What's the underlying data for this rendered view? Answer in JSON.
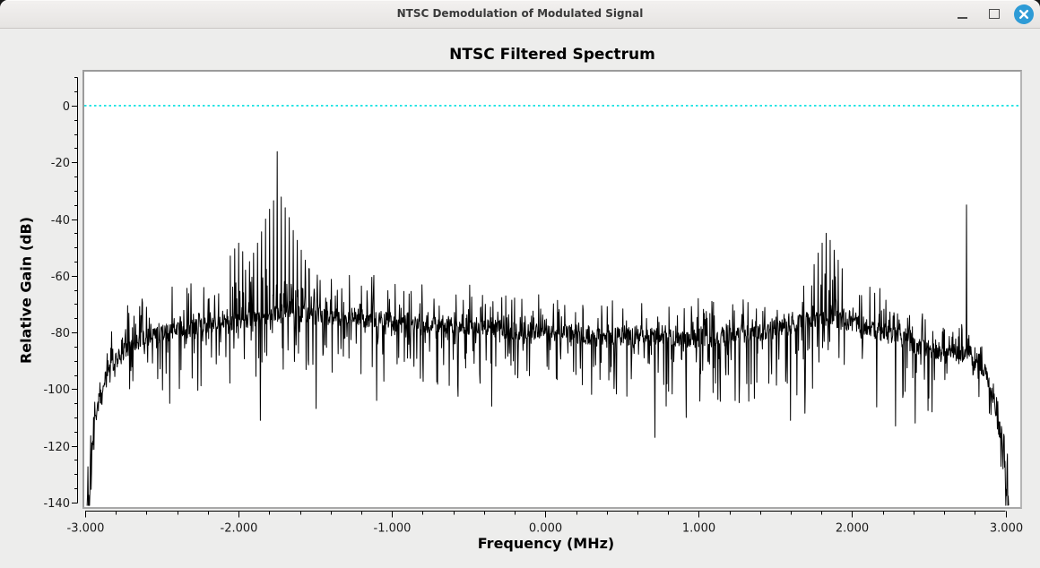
{
  "window": {
    "title": "NTSC Demodulation of Modulated Signal",
    "controls": [
      {
        "name": "minimize",
        "icon": "window-minimize-icon"
      },
      {
        "name": "maximize",
        "icon": "window-maximize-icon"
      },
      {
        "name": "close",
        "icon": "window-close-icon"
      }
    ]
  },
  "colors": {
    "close_button": "#2e9bd6",
    "titlebar_text": "#3a3a3a",
    "client_background": "#ededec",
    "plot_background": "#ffffff",
    "ref_line": "#00e0e0",
    "trace": "#000000"
  },
  "chart": {
    "title": "NTSC Filtered Spectrum",
    "xlabel": "Frequency (MHz)",
    "ylabel": "Relative Gain (dB)"
  },
  "chart_data": {
    "type": "line",
    "title": "NTSC Filtered Spectrum",
    "xlabel": "Frequency (MHz)",
    "ylabel": "Relative Gain (dB)",
    "x_units": "MHz",
    "y_units": "dB",
    "xlim": [
      -3.006,
      3.096
    ],
    "ylim": [
      -141.6,
      12.0
    ],
    "x_major_ticks": [
      -3,
      -2,
      -1,
      0,
      1,
      2,
      3
    ],
    "x_tick_labels": [
      "-3.000",
      "-2.000",
      "-1.000",
      "0.000",
      "1.000",
      "2.000",
      "3.000"
    ],
    "x_minor_step": 0.2,
    "y_major_ticks": [
      0,
      -20,
      -40,
      -60,
      -80,
      -100,
      -120,
      -140
    ],
    "y_tick_labels": [
      "0",
      "-20",
      "-40",
      "-60",
      "-80",
      "-100",
      "-120",
      "-140"
    ],
    "y_minor_step": 5,
    "grid": false,
    "legend": null,
    "ref_line": {
      "value": 0,
      "color": "#00e0e0",
      "style": "dotted"
    },
    "trace_color": "#000000",
    "noise_seed": 1337,
    "samples": 2300,
    "f_start": -2.99,
    "f_end": 3.02,
    "band_halfwidth": 3.2,
    "up_prob": 0.32,
    "down_prob": 0.22,
    "envelope": [
      [
        -2.99,
        -141
      ],
      [
        -2.965,
        -126
      ],
      [
        -2.94,
        -112
      ],
      [
        -2.9,
        -102
      ],
      [
        -2.85,
        -94
      ],
      [
        -2.78,
        -88
      ],
      [
        -2.7,
        -84
      ],
      [
        -2.55,
        -81
      ],
      [
        -2.35,
        -79
      ],
      [
        -2.15,
        -77
      ],
      [
        -1.95,
        -75.5
      ],
      [
        -1.75,
        -73.5
      ],
      [
        -1.5,
        -74
      ],
      [
        -1.25,
        -74.5
      ],
      [
        -1.0,
        -76
      ],
      [
        -0.75,
        -77
      ],
      [
        -0.5,
        -78
      ],
      [
        -0.25,
        -79
      ],
      [
        0.0,
        -80
      ],
      [
        0.3,
        -81
      ],
      [
        0.6,
        -81.5
      ],
      [
        0.9,
        -82
      ],
      [
        1.2,
        -81.5
      ],
      [
        1.45,
        -79.5
      ],
      [
        1.65,
        -77
      ],
      [
        1.8,
        -74.5
      ],
      [
        1.95,
        -76
      ],
      [
        2.15,
        -79
      ],
      [
        2.35,
        -83
      ],
      [
        2.5,
        -86
      ],
      [
        2.62,
        -88
      ],
      [
        2.75,
        -88
      ],
      [
        2.82,
        -90
      ],
      [
        2.88,
        -95
      ],
      [
        2.93,
        -104
      ],
      [
        2.965,
        -117
      ],
      [
        2.99,
        -129
      ],
      [
        3.01,
        -138
      ],
      [
        3.02,
        -141
      ]
    ],
    "up_amp": [
      [
        -2.99,
        4
      ],
      [
        -2.9,
        8
      ],
      [
        -2.75,
        12
      ],
      [
        -2.5,
        15
      ],
      [
        -2.2,
        16
      ],
      [
        -1.95,
        17
      ],
      [
        -1.6,
        16
      ],
      [
        -1.2,
        15
      ],
      [
        -0.8,
        14
      ],
      [
        -0.4,
        13.5
      ],
      [
        0.0,
        13
      ],
      [
        0.5,
        13
      ],
      [
        1.0,
        13.5
      ],
      [
        1.4,
        15
      ],
      [
        1.7,
        17
      ],
      [
        1.85,
        18
      ],
      [
        2.05,
        15
      ],
      [
        2.3,
        13
      ],
      [
        2.55,
        10
      ],
      [
        2.7,
        11
      ],
      [
        2.85,
        7
      ],
      [
        2.95,
        5
      ],
      [
        3.02,
        3
      ]
    ],
    "down_amp": [
      [
        -2.99,
        5
      ],
      [
        -2.9,
        10
      ],
      [
        -2.7,
        16
      ],
      [
        -2.4,
        20
      ],
      [
        -2.0,
        22
      ],
      [
        -1.5,
        23
      ],
      [
        -1.0,
        23
      ],
      [
        -0.5,
        23
      ],
      [
        0.0,
        23
      ],
      [
        0.5,
        24
      ],
      [
        1.0,
        24
      ],
      [
        1.5,
        25
      ],
      [
        2.0,
        26
      ],
      [
        2.4,
        26
      ],
      [
        2.6,
        18
      ],
      [
        2.8,
        16
      ],
      [
        2.92,
        9
      ],
      [
        3.02,
        4
      ]
    ],
    "peaks": [
      [
        -2.053,
        -53
      ],
      [
        -2.026,
        -50.5
      ],
      [
        -2.0,
        -48.5
      ],
      [
        -1.974,
        -51.5
      ],
      [
        -1.955,
        -58
      ],
      [
        -1.929,
        -55
      ],
      [
        -1.903,
        -52
      ],
      [
        -1.877,
        -48.5
      ],
      [
        -1.851,
        -44.5
      ],
      [
        -1.825,
        -40
      ],
      [
        -1.799,
        -36.5
      ],
      [
        -1.773,
        -33.5
      ],
      [
        -1.747,
        -16.2
      ],
      [
        -1.721,
        -32.2
      ],
      [
        -1.695,
        -36
      ],
      [
        -1.669,
        -39.5
      ],
      [
        -1.643,
        -44
      ],
      [
        -1.617,
        -47.5
      ],
      [
        -1.591,
        -51
      ],
      [
        -1.565,
        -54.5
      ],
      [
        -1.539,
        -57.5
      ],
      [
        1.752,
        -56
      ],
      [
        1.778,
        -52
      ],
      [
        1.804,
        -48.5
      ],
      [
        1.83,
        -45
      ],
      [
        1.856,
        -47.5
      ],
      [
        1.882,
        -51
      ],
      [
        1.908,
        -54.5
      ],
      [
        1.934,
        -57.5
      ],
      [
        2.746,
        -35
      ]
    ],
    "dips": [
      [
        -2.45,
        -105
      ],
      [
        -1.857,
        -111
      ],
      [
        -1.1,
        -104
      ],
      [
        -0.35,
        -106
      ],
      [
        0.713,
        -117
      ],
      [
        0.917,
        -110
      ],
      [
        1.597,
        -111
      ],
      [
        2.283,
        -113
      ],
      [
        2.41,
        -112
      ],
      [
        2.52,
        -108
      ]
    ]
  }
}
